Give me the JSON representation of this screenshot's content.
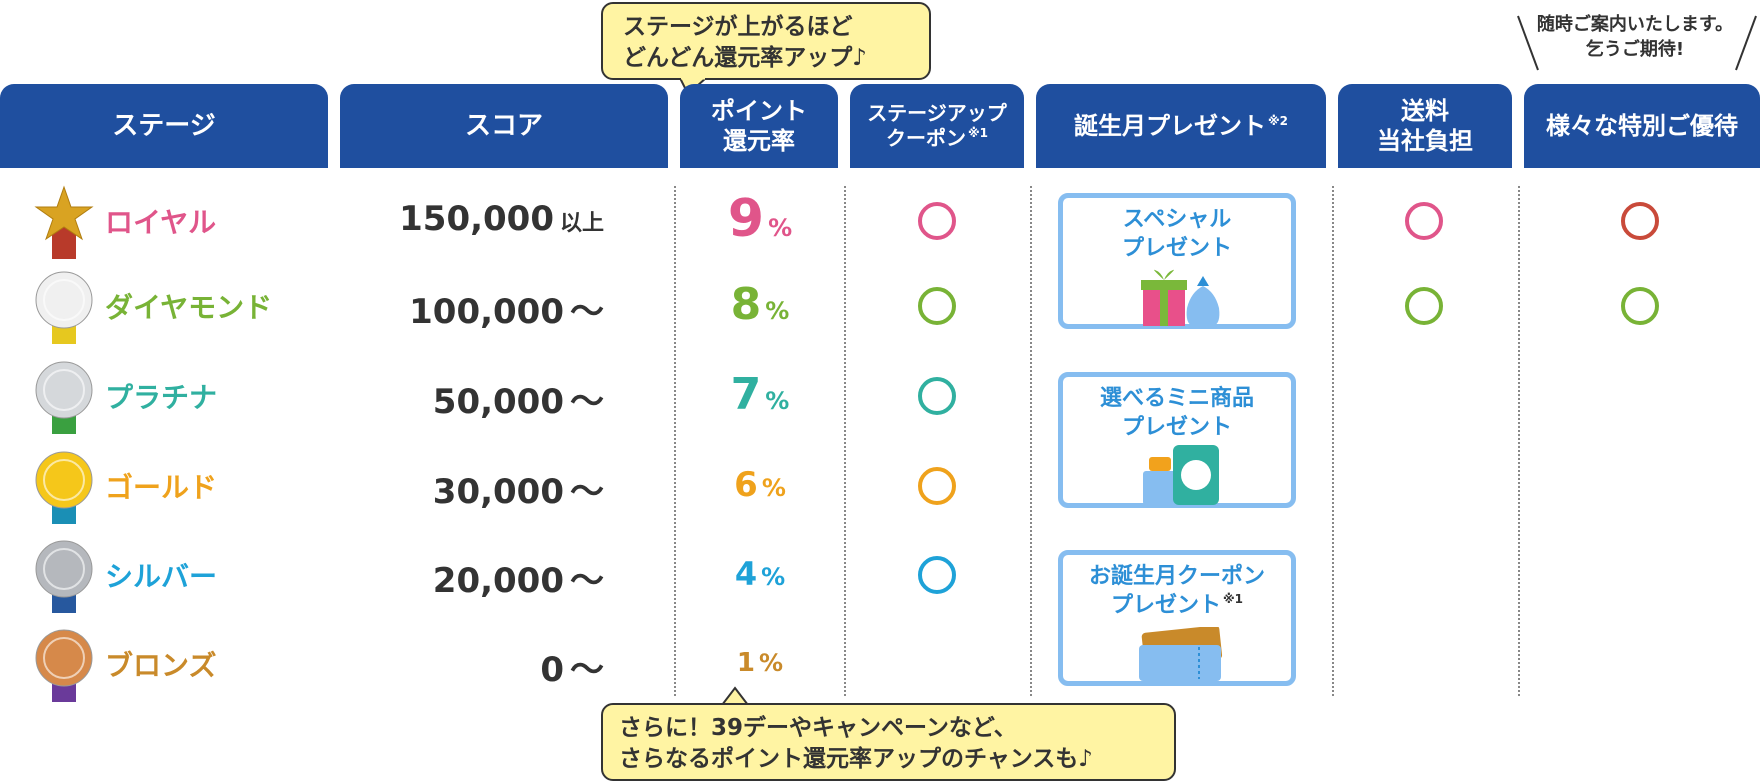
{
  "headers": {
    "stage": "ステージ",
    "score": "スコア",
    "rate_line1": "ポイント",
    "rate_line2": "還元率",
    "coupon_line1": "ステージアップ",
    "coupon_line2": "クーポン",
    "coupon_mark": "※1",
    "birthday": "誕生月プレゼント",
    "birthday_mark": "※2",
    "shipping_line1": "送料",
    "shipping_line2": "当社負担",
    "special": "様々な特別ご優待"
  },
  "top_bubble": {
    "line1": "ステージが上がるほど",
    "line2": "どんどん還元率アップ♪"
  },
  "top_note": {
    "line1": "随時ご案内いたします。",
    "line2": "乞うご期待!"
  },
  "bottom_bubble": {
    "line1": "さらに！39デーやキャンペーンなど、",
    "line2": "さらなるポイント還元率アップのチャンスも♪"
  },
  "stages": [
    {
      "name": "ロイヤル",
      "color": "#e0558a",
      "score": "150,000",
      "score_suffix": "以上",
      "rate": "9",
      "pct": "%",
      "medal": "star-medal-icon",
      "ribbon": "#b83a2a",
      "coupon_color": "#e0558a",
      "shipping_color": "#e0558a",
      "special_color": "#c94a3a"
    },
    {
      "name": "ダイヤモンド",
      "color": "#78b336",
      "score": "100,000",
      "score_suffix": "〜",
      "rate": "8",
      "pct": "%",
      "medal": "diamond-medal-icon",
      "ribbon": "#e6c81f",
      "coupon_color": "#78b336",
      "shipping_color": "#78b336",
      "special_color": "#78b336"
    },
    {
      "name": "プラチナ",
      "color": "#30b0a0",
      "score": "50,000",
      "score_suffix": "〜",
      "rate": "7",
      "pct": "%",
      "medal": "platinum-medal-icon",
      "ribbon": "#3aa040",
      "coupon_color": "#30b0a0"
    },
    {
      "name": "ゴールド",
      "color": "#efa21c",
      "score": "30,000",
      "score_suffix": "〜",
      "rate": "6",
      "pct": "%",
      "medal": "gold-medal-icon",
      "ribbon": "#1a8fb5",
      "coupon_color": "#efa21c"
    },
    {
      "name": "シルバー",
      "color": "#1ea2d8",
      "score": "20,000",
      "score_suffix": "〜",
      "rate": "4",
      "pct": "%",
      "medal": "silver-medal-icon",
      "ribbon": "#27589e",
      "coupon_color": "#1ea2d8"
    },
    {
      "name": "ブロンズ",
      "color": "#c98a2a",
      "score": "0",
      "score_suffix": "〜",
      "rate": "1",
      "pct": "%",
      "medal": "bronze-medal-icon",
      "ribbon": "#6a3a9a"
    }
  ],
  "birthday_gifts": [
    {
      "line1": "スペシャル",
      "line2": "プレゼント",
      "mark": "",
      "icon": "gift-bag-icon"
    },
    {
      "line1": "選べるミニ商品",
      "line2": "プレゼント",
      "mark": "",
      "icon": "cosmetics-icon"
    },
    {
      "line1": "お誕生月クーポン",
      "line2": "プレゼント",
      "mark": "※1",
      "icon": "coupon-ticket-icon"
    }
  ]
}
